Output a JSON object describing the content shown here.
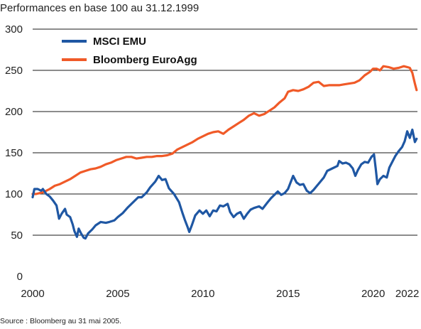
{
  "chart_data": {
    "type": "line",
    "title": "Performances en base 100 au 31.12.1999",
    "source": "Source : Bloomberg au 31 mai 2005.",
    "xlabel": "",
    "ylabel": "",
    "xlim": [
      2000,
      2022.6
    ],
    "ylim": [
      0,
      300
    ],
    "yticks": [
      0,
      50,
      100,
      150,
      200,
      250,
      300
    ],
    "xticks": [
      2000,
      2005,
      2010,
      2015,
      2020,
      2022
    ],
    "xtick_labels": [
      "2000",
      "2005",
      "2010",
      "2015",
      "2020",
      "2022"
    ],
    "grid": "horizontal",
    "legend_position": "top-left",
    "series": [
      {
        "name": "MSCI EMU",
        "color": "#1f57a3",
        "points": [
          [
            2000.0,
            96
          ],
          [
            2000.1,
            106
          ],
          [
            2000.3,
            106
          ],
          [
            2000.5,
            104
          ],
          [
            2000.6,
            106
          ],
          [
            2000.8,
            100
          ],
          [
            2001.0,
            97
          ],
          [
            2001.2,
            92
          ],
          [
            2001.4,
            86
          ],
          [
            2001.55,
            70
          ],
          [
            2001.7,
            76
          ],
          [
            2001.9,
            82
          ],
          [
            2002.0,
            75
          ],
          [
            2002.2,
            72
          ],
          [
            2002.35,
            63
          ],
          [
            2002.45,
            55
          ],
          [
            2002.6,
            48
          ],
          [
            2002.7,
            58
          ],
          [
            2002.85,
            52
          ],
          [
            2003.0,
            47
          ],
          [
            2003.1,
            46
          ],
          [
            2003.25,
            52
          ],
          [
            2003.5,
            57
          ],
          [
            2003.7,
            62
          ],
          [
            2004.0,
            66
          ],
          [
            2004.3,
            65
          ],
          [
            2004.5,
            66
          ],
          [
            2004.8,
            68
          ],
          [
            2005.0,
            72
          ],
          [
            2005.3,
            77
          ],
          [
            2005.6,
            84
          ],
          [
            2005.9,
            90
          ],
          [
            2006.2,
            96
          ],
          [
            2006.4,
            96
          ],
          [
            2006.7,
            102
          ],
          [
            2006.9,
            108
          ],
          [
            2007.2,
            115
          ],
          [
            2007.4,
            122
          ],
          [
            2007.6,
            117
          ],
          [
            2007.8,
            118
          ],
          [
            2008.0,
            107
          ],
          [
            2008.3,
            100
          ],
          [
            2008.6,
            90
          ],
          [
            2008.8,
            77
          ],
          [
            2008.95,
            68
          ],
          [
            2009.1,
            60
          ],
          [
            2009.2,
            54
          ],
          [
            2009.35,
            62
          ],
          [
            2009.55,
            74
          ],
          [
            2009.8,
            80
          ],
          [
            2010.0,
            76
          ],
          [
            2010.2,
            80
          ],
          [
            2010.4,
            73
          ],
          [
            2010.6,
            80
          ],
          [
            2010.8,
            79
          ],
          [
            2011.0,
            86
          ],
          [
            2011.2,
            85
          ],
          [
            2011.45,
            88
          ],
          [
            2011.6,
            78
          ],
          [
            2011.8,
            72
          ],
          [
            2012.0,
            76
          ],
          [
            2012.2,
            78
          ],
          [
            2012.4,
            70
          ],
          [
            2012.6,
            76
          ],
          [
            2012.8,
            81
          ],
          [
            2013.0,
            83
          ],
          [
            2013.3,
            85
          ],
          [
            2013.5,
            82
          ],
          [
            2013.8,
            90
          ],
          [
            2014.0,
            95
          ],
          [
            2014.2,
            99
          ],
          [
            2014.4,
            103
          ],
          [
            2014.6,
            99
          ],
          [
            2014.8,
            101
          ],
          [
            2015.0,
            106
          ],
          [
            2015.3,
            122
          ],
          [
            2015.5,
            114
          ],
          [
            2015.7,
            111
          ],
          [
            2015.9,
            112
          ],
          [
            2016.1,
            104
          ],
          [
            2016.3,
            101
          ],
          [
            2016.5,
            105
          ],
          [
            2016.7,
            110
          ],
          [
            2016.9,
            115
          ],
          [
            2017.1,
            120
          ],
          [
            2017.3,
            128
          ],
          [
            2017.6,
            131
          ],
          [
            2017.9,
            134
          ],
          [
            2018.0,
            140
          ],
          [
            2018.2,
            137
          ],
          [
            2018.4,
            138
          ],
          [
            2018.6,
            136
          ],
          [
            2018.8,
            131
          ],
          [
            2018.95,
            122
          ],
          [
            2019.1,
            129
          ],
          [
            2019.3,
            136
          ],
          [
            2019.5,
            139
          ],
          [
            2019.7,
            138
          ],
          [
            2019.9,
            145
          ],
          [
            2020.05,
            148
          ],
          [
            2020.15,
            131
          ],
          [
            2020.25,
            112
          ],
          [
            2020.4,
            118
          ],
          [
            2020.6,
            122
          ],
          [
            2020.8,
            120
          ],
          [
            2020.95,
            132
          ],
          [
            2021.1,
            138
          ],
          [
            2021.3,
            146
          ],
          [
            2021.5,
            152
          ],
          [
            2021.7,
            157
          ],
          [
            2021.85,
            164
          ],
          [
            2022.0,
            176
          ],
          [
            2022.15,
            168
          ],
          [
            2022.3,
            178
          ],
          [
            2022.45,
            163
          ],
          [
            2022.55,
            167
          ]
        ]
      },
      {
        "name": "Bloomberg EuroAgg",
        "color": "#f05a28",
        "points": [
          [
            2000.0,
            100
          ],
          [
            2000.2,
            100
          ],
          [
            2000.4,
            101
          ],
          [
            2000.6,
            102
          ],
          [
            2000.8,
            104
          ],
          [
            2001.0,
            106
          ],
          [
            2001.3,
            110
          ],
          [
            2001.6,
            112
          ],
          [
            2001.9,
            115
          ],
          [
            2002.2,
            118
          ],
          [
            2002.5,
            122
          ],
          [
            2002.8,
            126
          ],
          [
            2003.1,
            128
          ],
          [
            2003.4,
            130
          ],
          [
            2003.7,
            131
          ],
          [
            2004.0,
            133
          ],
          [
            2004.3,
            136
          ],
          [
            2004.6,
            138
          ],
          [
            2004.9,
            141
          ],
          [
            2005.2,
            143
          ],
          [
            2005.5,
            145
          ],
          [
            2005.8,
            145
          ],
          [
            2006.1,
            143
          ],
          [
            2006.4,
            144
          ],
          [
            2006.7,
            145
          ],
          [
            2007.0,
            145
          ],
          [
            2007.3,
            146
          ],
          [
            2007.6,
            146
          ],
          [
            2007.9,
            147
          ],
          [
            2008.2,
            149
          ],
          [
            2008.5,
            154
          ],
          [
            2008.8,
            157
          ],
          [
            2009.1,
            160
          ],
          [
            2009.4,
            163
          ],
          [
            2009.7,
            167
          ],
          [
            2010.0,
            170
          ],
          [
            2010.3,
            173
          ],
          [
            2010.6,
            175
          ],
          [
            2010.9,
            176
          ],
          [
            2011.2,
            173
          ],
          [
            2011.5,
            178
          ],
          [
            2011.8,
            182
          ],
          [
            2012.1,
            186
          ],
          [
            2012.4,
            190
          ],
          [
            2012.7,
            195
          ],
          [
            2013.0,
            198
          ],
          [
            2013.3,
            195
          ],
          [
            2013.6,
            197
          ],
          [
            2013.9,
            201
          ],
          [
            2014.2,
            205
          ],
          [
            2014.5,
            211
          ],
          [
            2014.8,
            216
          ],
          [
            2015.0,
            224
          ],
          [
            2015.3,
            226
          ],
          [
            2015.6,
            225
          ],
          [
            2015.9,
            227
          ],
          [
            2016.2,
            230
          ],
          [
            2016.5,
            235
          ],
          [
            2016.8,
            236
          ],
          [
            2017.1,
            231
          ],
          [
            2017.4,
            232
          ],
          [
            2017.7,
            232
          ],
          [
            2018.0,
            232
          ],
          [
            2018.3,
            233
          ],
          [
            2018.6,
            234
          ],
          [
            2018.9,
            235
          ],
          [
            2019.2,
            238
          ],
          [
            2019.5,
            244
          ],
          [
            2019.8,
            248
          ],
          [
            2020.0,
            252
          ],
          [
            2020.2,
            252
          ],
          [
            2020.4,
            250
          ],
          [
            2020.6,
            255
          ],
          [
            2020.9,
            254
          ],
          [
            2021.2,
            252
          ],
          [
            2021.5,
            253
          ],
          [
            2021.8,
            255
          ],
          [
            2022.0,
            254
          ],
          [
            2022.15,
            253
          ],
          [
            2022.3,
            247
          ],
          [
            2022.45,
            234
          ],
          [
            2022.55,
            226
          ]
        ]
      }
    ]
  }
}
